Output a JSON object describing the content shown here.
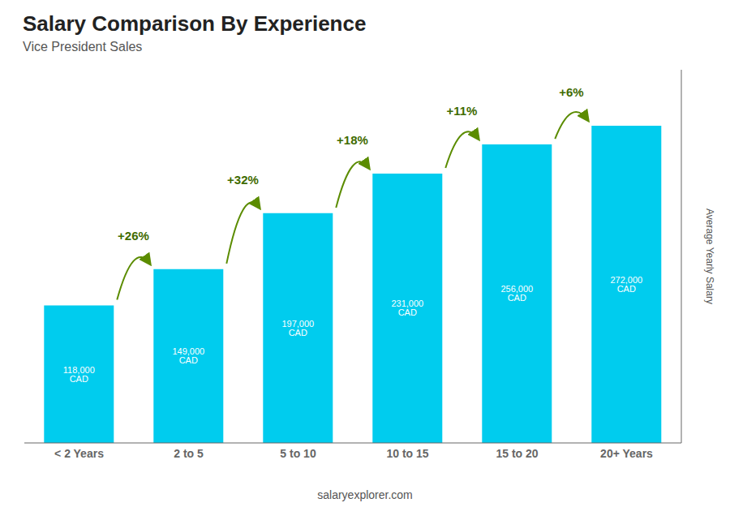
{
  "chart_data": {
    "type": "bar",
    "title": "Salary Comparison By Experience",
    "subtitle": "Vice President Sales",
    "categories": [
      "< 2 Years",
      "2 to 5",
      "5 to 10",
      "10 to 15",
      "15 to 20",
      "20+ Years"
    ],
    "values": [
      118000,
      149000,
      197000,
      231000,
      256000,
      272000
    ],
    "value_labels": [
      "118,000 CAD",
      "149,000 CAD",
      "197,000 CAD",
      "231,000 CAD",
      "256,000 CAD",
      "272,000 CAD"
    ],
    "data_labels": true,
    "annotations": [
      "+26%",
      "+32%",
      "+18%",
      "+11%",
      "+6%"
    ],
    "ylabel": "Average Yearly Salary",
    "footer": "salaryexplorer.com",
    "color": "#00ccee",
    "ylim": [
      0,
      320000
    ],
    "tick_labels": "x"
  }
}
